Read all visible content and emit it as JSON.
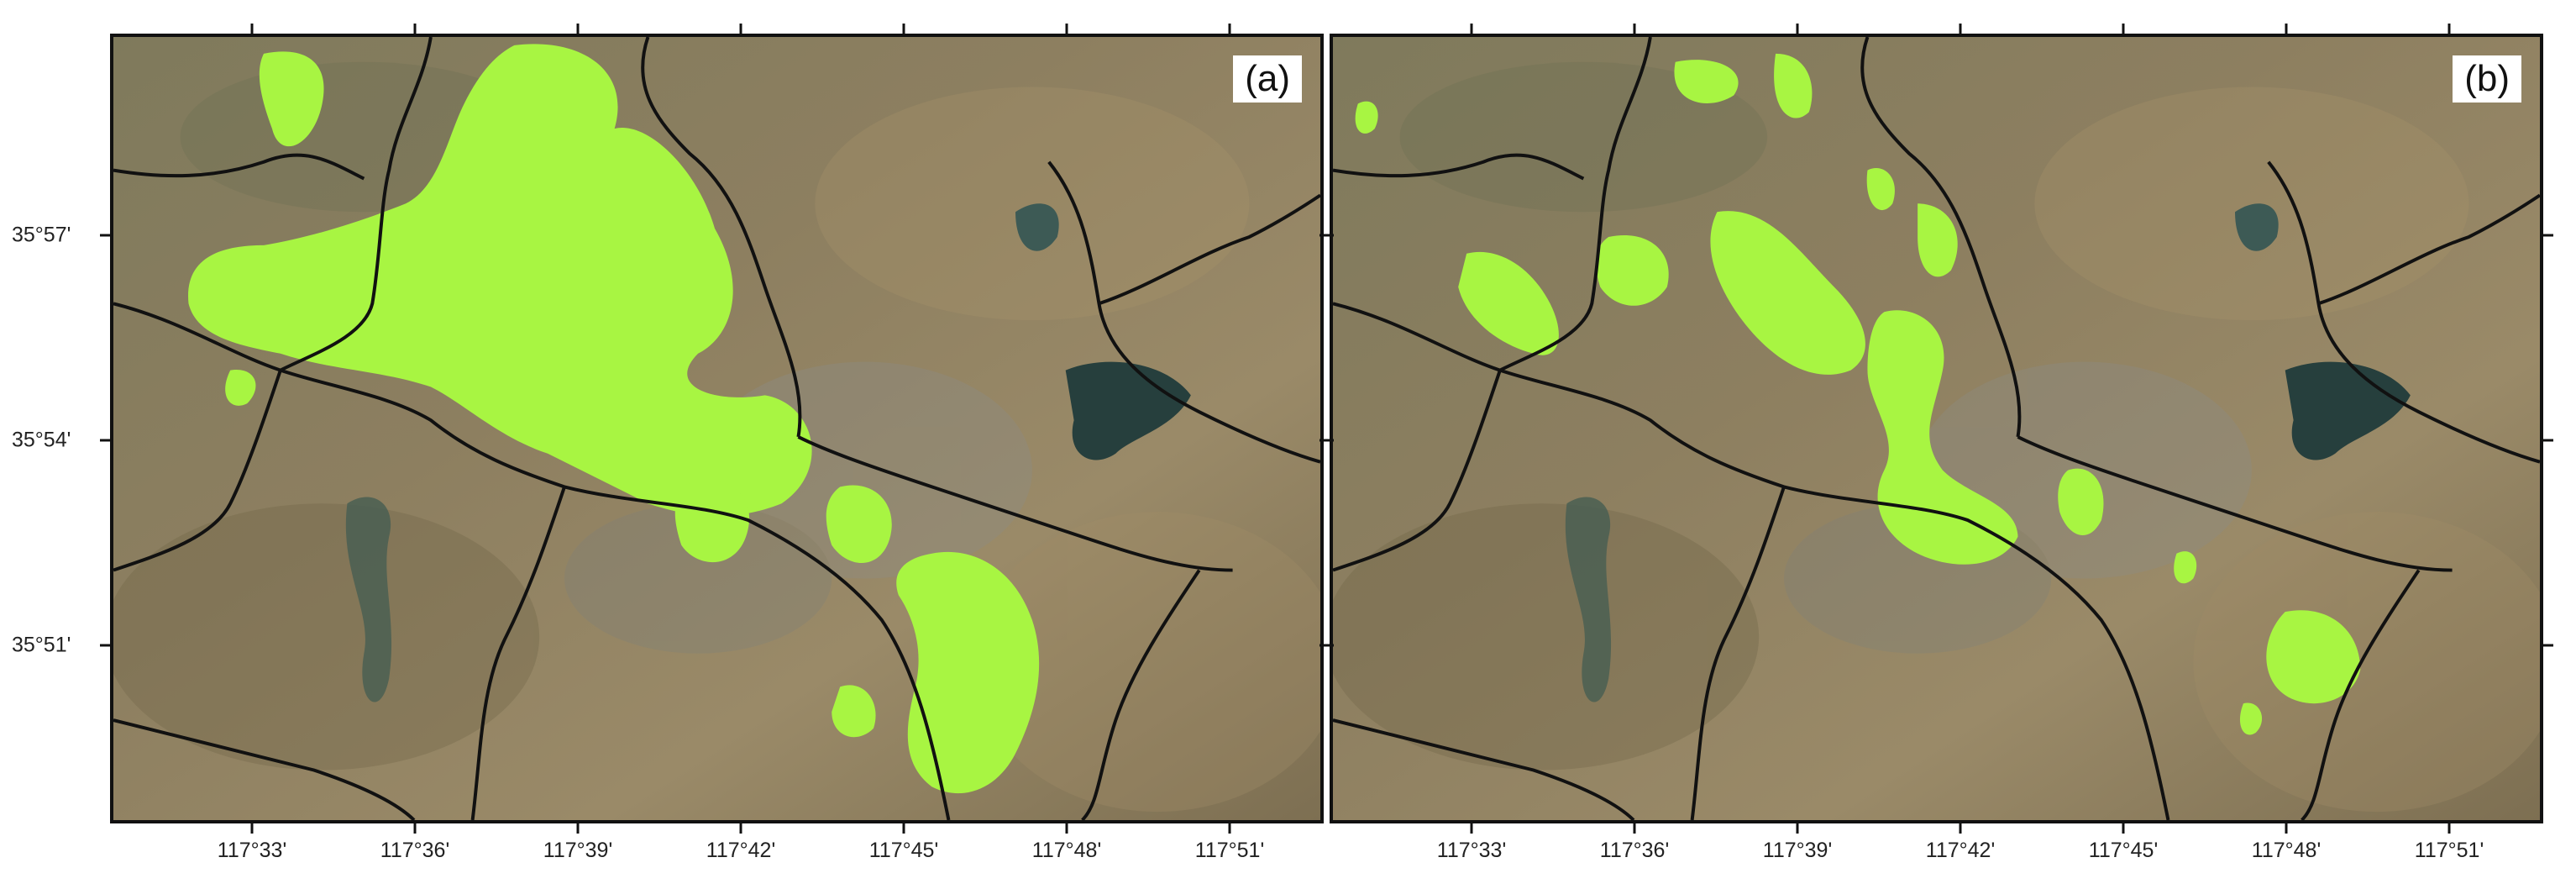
{
  "panels": [
    {
      "id": "a",
      "label": "(a)"
    },
    {
      "id": "b",
      "label": "(b)"
    }
  ],
  "axes": {
    "x_ticks": [
      "117°33'",
      "117°36'",
      "117°39'",
      "117°42'",
      "117°45'",
      "117°48'",
      "117°51'"
    ],
    "y_ticks": [
      "35°57'",
      "35°54'",
      "35°51'"
    ]
  },
  "colors": {
    "highlight": "#a8f542",
    "boundary": "#111111",
    "water": "#2f4f4c",
    "terrain": "#8a7d5e"
  }
}
